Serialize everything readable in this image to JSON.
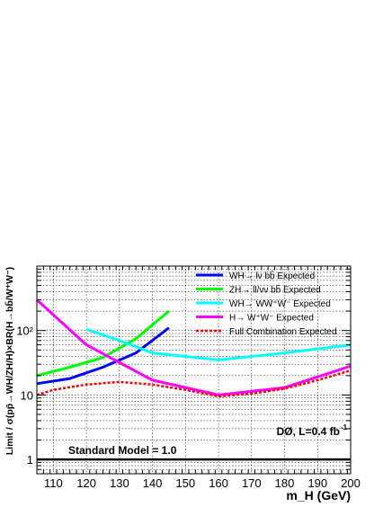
{
  "chart_data": {
    "type": "line",
    "title": "",
    "xlabel": "m_H (GeV)",
    "ylabel": "Limit / σ(pp̄→WH/ZH/H)×BR(H→bb̄/W⁺W⁻)",
    "xlim": [
      105,
      200
    ],
    "ylim": [
      0.6,
      1000
    ],
    "yscale": "log",
    "grid": true,
    "legend_position": "top-right",
    "x_ticks": [
      110,
      120,
      130,
      140,
      150,
      160,
      170,
      180,
      190,
      200
    ],
    "x_tick_labels": [
      "110",
      "120",
      "130",
      "140",
      "150",
      "160",
      "170",
      "180",
      "190",
      "200"
    ],
    "y_ticks": [
      1,
      10,
      100
    ],
    "y_tick_labels": [
      "1",
      "10",
      "10²"
    ],
    "series": [
      {
        "name": "WH→ lν bb̄ Expected",
        "color": "#0000ff",
        "dash": "solid",
        "x": [
          105,
          115,
          125,
          135,
          145
        ],
        "y": [
          15,
          18,
          27,
          45,
          110
        ]
      },
      {
        "name": "ZH→ ll/νν bb̄ Expected",
        "color": "#00ff00",
        "dash": "solid",
        "x": [
          105,
          115,
          125,
          135,
          145
        ],
        "y": [
          20,
          27,
          38,
          75,
          200
        ]
      },
      {
        "name": "WH→ WW⁺W⁻ Expected",
        "color": "#00ffff",
        "dash": "solid",
        "x": [
          120,
          130,
          140,
          160,
          180,
          200
        ],
        "y": [
          105,
          70,
          45,
          35,
          45,
          60
        ]
      },
      {
        "name": "H→ W⁺W⁻ Expected",
        "color": "#ff00ff",
        "dash": "solid",
        "x": [
          105,
          120,
          140,
          160,
          180,
          200
        ],
        "y": [
          300,
          60,
          17,
          10,
          13,
          28
        ]
      },
      {
        "name": "Full Combination Expected",
        "color": "#ff0000",
        "dash": "dotted",
        "x": [
          105,
          110,
          120,
          130,
          140,
          150,
          160,
          170,
          180,
          190,
          200
        ],
        "y": [
          10,
          12,
          14.5,
          16,
          14.5,
          12,
          9.5,
          10.5,
          12.5,
          17,
          24
        ]
      }
    ],
    "reference_line": {
      "label": "Standard Model = 1.0",
      "y": 1.0,
      "color": "#000000"
    },
    "annotations": [
      {
        "text": "DØ, L=0.4 fb",
        "sup": "-1"
      }
    ]
  }
}
